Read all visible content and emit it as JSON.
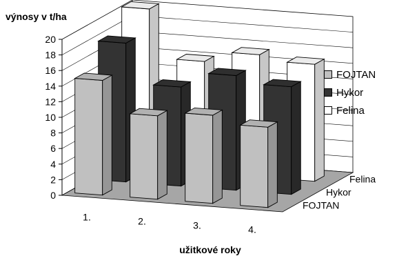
{
  "chart_data": {
    "type": "bar",
    "subtype": "3d-clustered-column",
    "title": "výnosy v t/ha",
    "xlabel": "užitkové roky",
    "ylabel": "",
    "ylim": [
      0,
      20
    ],
    "yticks": [
      "0",
      "2",
      "4",
      "6",
      "8",
      "10",
      "12",
      "14",
      "16",
      "18",
      "20"
    ],
    "categories": [
      "1.",
      "2.",
      "3.",
      "4."
    ],
    "series": [
      {
        "name": "FOJTAN",
        "values": [
          14.7,
          10.7,
          11.3,
          10.3
        ],
        "color": "#c0c0c0"
      },
      {
        "name": "Hykor",
        "values": [
          17.8,
          12.7,
          14.7,
          13.8
        ],
        "color": "#333333"
      },
      {
        "name": "Felina",
        "values": [
          20.5,
          14.3,
          15.7,
          15.0
        ],
        "color": "#ffffff"
      }
    ],
    "depth_labels": [
      "FOJTAN",
      "Hykor",
      "Felina"
    ],
    "legend_position": "right",
    "grid": true,
    "floor_color": "#a6a6a6"
  }
}
